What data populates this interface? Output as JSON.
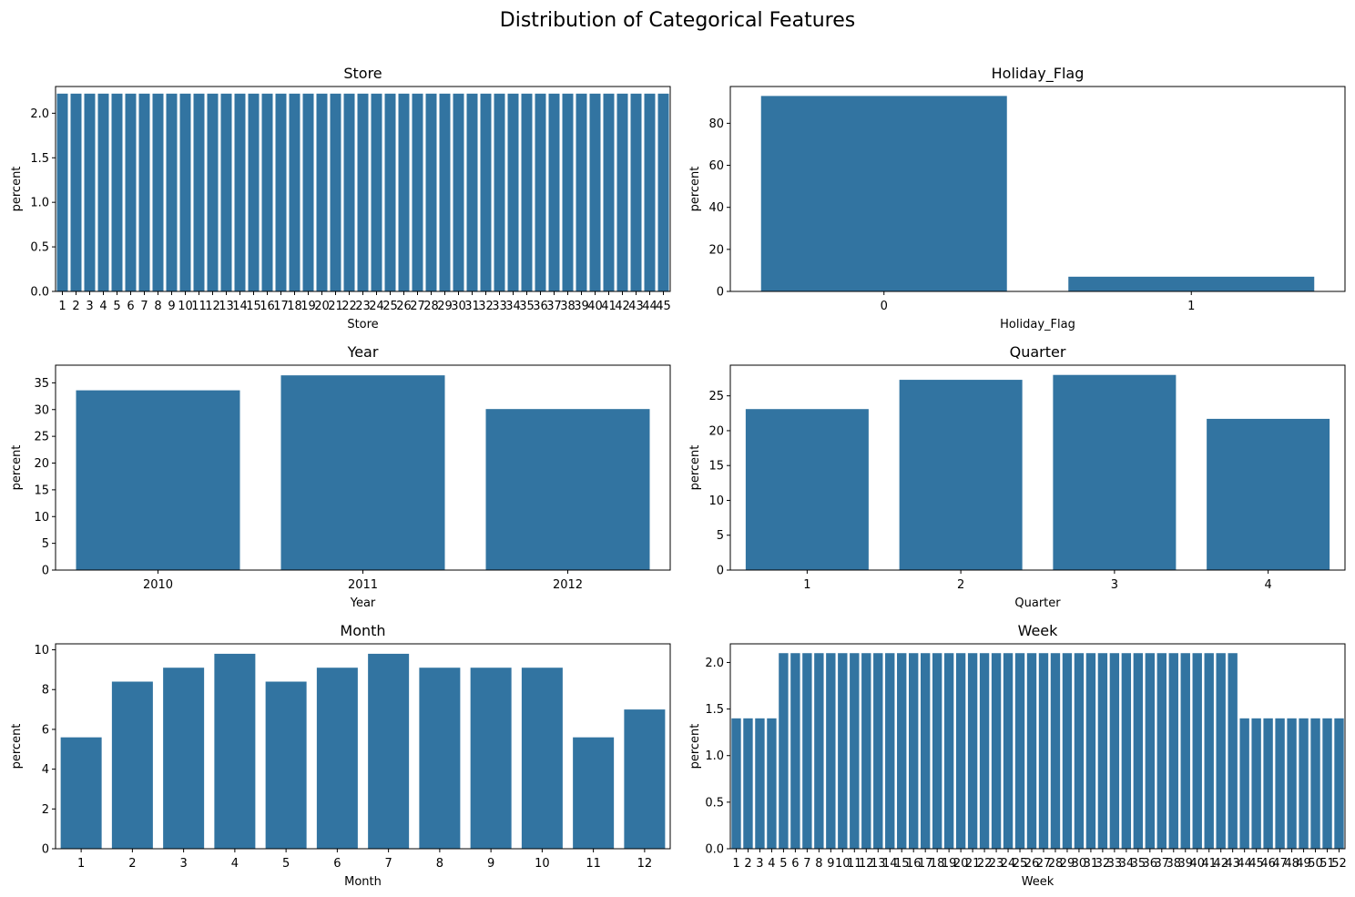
{
  "figure": {
    "suptitle": "Distribution of Categorical Features"
  },
  "colors": {
    "bar": "#3274a1"
  },
  "chart_data": [
    {
      "type": "bar",
      "title": "Store",
      "xlabel": "Store",
      "ylabel": "percent",
      "ylim": [
        0,
        2.3
      ],
      "yticks": [
        "0.0",
        "0.5",
        "1.0",
        "1.5",
        "2.0"
      ],
      "categories": [
        "1",
        "2",
        "3",
        "4",
        "5",
        "6",
        "7",
        "8",
        "9",
        "10",
        "11",
        "12",
        "13",
        "14",
        "15",
        "16",
        "17",
        "18",
        "19",
        "20",
        "21",
        "22",
        "23",
        "24",
        "25",
        "26",
        "27",
        "28",
        "29",
        "30",
        "31",
        "32",
        "33",
        "34",
        "35",
        "36",
        "37",
        "38",
        "39",
        "40",
        "41",
        "42",
        "43",
        "44",
        "45"
      ],
      "values": [
        2.22,
        2.22,
        2.22,
        2.22,
        2.22,
        2.22,
        2.22,
        2.22,
        2.22,
        2.22,
        2.22,
        2.22,
        2.22,
        2.22,
        2.22,
        2.22,
        2.22,
        2.22,
        2.22,
        2.22,
        2.22,
        2.22,
        2.22,
        2.22,
        2.22,
        2.22,
        2.22,
        2.22,
        2.22,
        2.22,
        2.22,
        2.22,
        2.22,
        2.22,
        2.22,
        2.22,
        2.22,
        2.22,
        2.22,
        2.22,
        2.22,
        2.22,
        2.22,
        2.22,
        2.22
      ]
    },
    {
      "type": "bar",
      "title": "Holiday_Flag",
      "xlabel": "Holiday_Flag",
      "ylabel": "percent",
      "ylim": [
        0,
        97.5
      ],
      "yticks": [
        "0",
        "20",
        "40",
        "60",
        "80"
      ],
      "categories": [
        "0",
        "1"
      ],
      "values": [
        93.0,
        7.0
      ]
    },
    {
      "type": "bar",
      "title": "Year",
      "xlabel": "Year",
      "ylabel": "percent",
      "ylim": [
        0,
        38.3
      ],
      "yticks": [
        "0",
        "5",
        "10",
        "15",
        "20",
        "25",
        "30",
        "35"
      ],
      "categories": [
        "2010",
        "2011",
        "2012"
      ],
      "values": [
        33.6,
        36.4,
        30.1
      ]
    },
    {
      "type": "bar",
      "title": "Quarter",
      "xlabel": "Quarter",
      "ylabel": "percent",
      "ylim": [
        0,
        29.4
      ],
      "yticks": [
        "0",
        "5",
        "10",
        "15",
        "20",
        "25"
      ],
      "categories": [
        "1",
        "2",
        "3",
        "4"
      ],
      "values": [
        23.1,
        27.3,
        28.0,
        21.7
      ]
    },
    {
      "type": "bar",
      "title": "Month",
      "xlabel": "Month",
      "ylabel": "percent",
      "ylim": [
        0,
        10.3
      ],
      "yticks": [
        "0",
        "2",
        "4",
        "6",
        "8",
        "10"
      ],
      "categories": [
        "1",
        "2",
        "3",
        "4",
        "5",
        "6",
        "7",
        "8",
        "9",
        "10",
        "11",
        "12"
      ],
      "values": [
        5.6,
        8.4,
        9.1,
        9.8,
        8.4,
        9.1,
        9.8,
        9.1,
        9.1,
        9.1,
        5.6,
        7.0
      ]
    },
    {
      "type": "bar",
      "title": "Week",
      "xlabel": "Week",
      "ylabel": "percent",
      "ylim": [
        0,
        2.2
      ],
      "yticks": [
        "0.0",
        "0.5",
        "1.0",
        "1.5",
        "2.0"
      ],
      "categories": [
        "1",
        "2",
        "3",
        "4",
        "5",
        "6",
        "7",
        "8",
        "9",
        "10",
        "11",
        "12",
        "13",
        "14",
        "15",
        "16",
        "17",
        "18",
        "19",
        "20",
        "21",
        "22",
        "23",
        "24",
        "25",
        "26",
        "27",
        "28",
        "29",
        "30",
        "31",
        "32",
        "33",
        "34",
        "35",
        "36",
        "37",
        "38",
        "39",
        "40",
        "41",
        "42",
        "43",
        "44",
        "45",
        "46",
        "47",
        "48",
        "49",
        "50",
        "51",
        "52"
      ],
      "values": [
        1.4,
        1.4,
        1.4,
        1.4,
        2.1,
        2.1,
        2.1,
        2.1,
        2.1,
        2.1,
        2.1,
        2.1,
        2.1,
        2.1,
        2.1,
        2.1,
        2.1,
        2.1,
        2.1,
        2.1,
        2.1,
        2.1,
        2.1,
        2.1,
        2.1,
        2.1,
        2.1,
        2.1,
        2.1,
        2.1,
        2.1,
        2.1,
        2.1,
        2.1,
        2.1,
        2.1,
        2.1,
        2.1,
        2.1,
        2.1,
        2.1,
        2.1,
        2.1,
        1.4,
        1.4,
        1.4,
        1.4,
        1.4,
        1.4,
        1.4,
        1.4,
        1.4
      ]
    }
  ]
}
